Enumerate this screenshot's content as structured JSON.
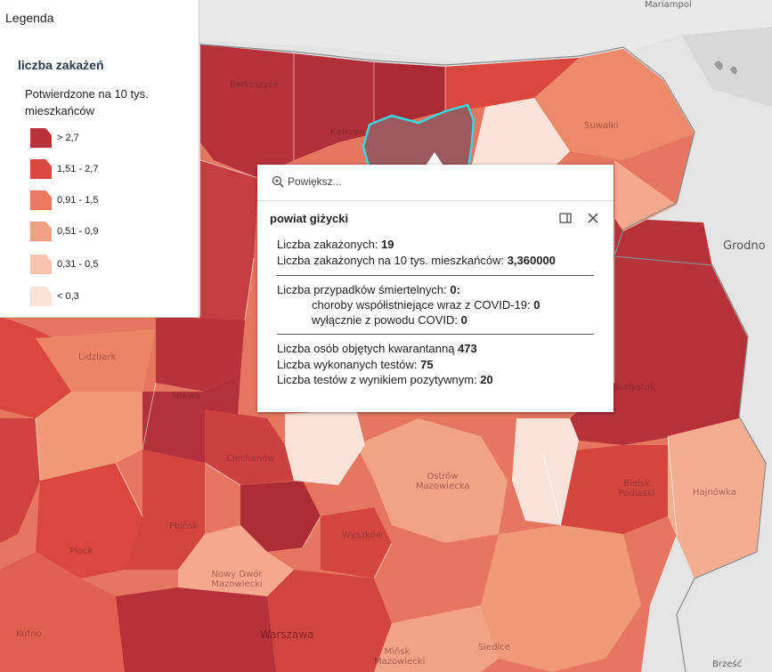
{
  "legend": {
    "title": "Legenda",
    "layer_name": "liczba zakażeń",
    "field_name": "Potwierdzone na 10 tys. mieszkańców",
    "classes": [
      {
        "label": "> 2,7",
        "color": "#b8343d"
      },
      {
        "label": "1,51 - 2,7",
        "color": "#d9473f"
      },
      {
        "label": "0,91 - 1,5",
        "color": "#ea7a5f"
      },
      {
        "label": "0,51 - 0,9",
        "color": "#f4a083"
      },
      {
        "label": "0,31 - 0,5",
        "color": "#f8c3ac"
      },
      {
        "label": "< 0,3",
        "color": "#fbe3d9"
      }
    ]
  },
  "popup": {
    "zoom_label": "Powiększ...",
    "title": "powiat giżycki",
    "cases_label": "Liczba zakażonych: ",
    "cases_value": "19",
    "rate_label": "Liczba zakażonych na 10 tys. mieszkańców: ",
    "rate_value": "3,360000",
    "deaths_label": "Liczba przypadków śmiertelnych: ",
    "deaths_value": "0:",
    "comorb_label": "choroby współistniejące wraz z COVID-19: ",
    "comorb_value": "0",
    "covid_only_label": "wyłącznie z powodu COVID: ",
    "covid_only_value": "0",
    "quarantine_label": "Liczba osób objętych kwarantanną ",
    "quarantine_value": "473",
    "tests_label": "Liczba wykonanych testów: ",
    "tests_value": "75",
    "positive_label": "Liczba testów z wynikiem pozytywnym: ",
    "positive_value": "20"
  },
  "map_labels": {
    "bartoszyce": "Bartoszyce",
    "ketrzyn": "Kętrzyn",
    "suwalki": "Suwałki",
    "grodno": "Grodno",
    "mariampol": "Mariampol",
    "lidzbark": "Lidzbark",
    "mlawa": "Mława",
    "ciechanow": "Ciechanów",
    "ostrow": "Ostrów Mazowiecka",
    "bialystok": "Białystok",
    "bielsk": "Bielsk Podlaski",
    "hajnowka": "Hajnówka",
    "plonsk": "Płońsk",
    "wyszkow": "Wyszków",
    "nowy_dwor": "Nowy Dwór Mazowiecki",
    "warszawa": "Warszawa",
    "minsk": "Mińsk Mazowiecki",
    "siedlce": "Siedlce",
    "kutno": "Kutno",
    "brzesc": "Brześć",
    "plock": "Płock"
  }
}
